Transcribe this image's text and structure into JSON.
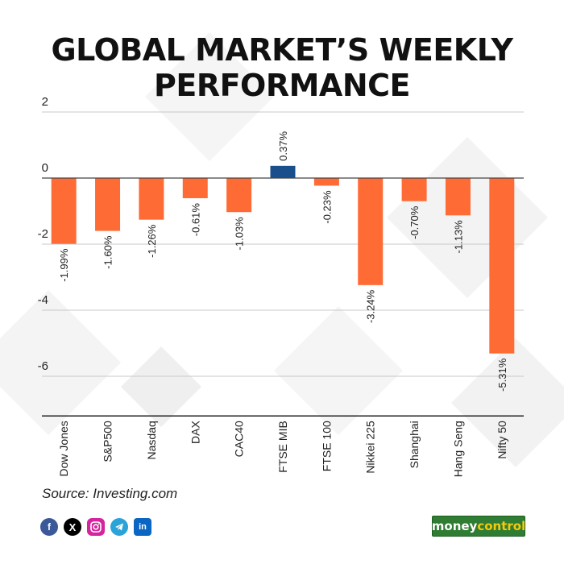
{
  "title_lines": [
    "GLOBAL MARKET’S WEEKLY",
    "PERFORMANCE"
  ],
  "source": "Source: Investing.com",
  "brand": {
    "prefix": "money",
    "suffix": "control"
  },
  "social_icons": [
    "facebook-icon",
    "x-icon",
    "instagram-icon",
    "telegram-icon",
    "linkedin-icon"
  ],
  "colors": {
    "negative": "#ff6b35",
    "positive": "#1a4f8b",
    "gridline": "#c8c8c8",
    "zero_line": "#444444",
    "brand_green": "#2e7d32"
  },
  "chart_data": {
    "type": "bar",
    "title": "GLOBAL MARKET’S WEEKLY PERFORMANCE",
    "categories": [
      "Dow Jones",
      "S&P500",
      "Nasdaq",
      "DAX",
      "CAC40",
      "FTSE MIB",
      "FTSE 100",
      "Nikkei 225",
      "Shanghai",
      "Hang Seng",
      "Nifty 50"
    ],
    "values": [
      -1.99,
      -1.6,
      -1.26,
      -0.61,
      -1.03,
      0.37,
      -0.23,
      -3.24,
      -0.7,
      -1.13,
      -5.31
    ],
    "data_labels": [
      "-1.99%",
      "-1.60%",
      "-1.26%",
      "-0.61%",
      "-1.03%",
      "0.37%",
      "-0.23%",
      "-3.24%",
      "-0.70%",
      "-1.13%",
      "-5.31%"
    ],
    "y_ticks": [
      2,
      0,
      -2,
      -4,
      -6
    ],
    "ylim": [
      -7.2,
      2
    ],
    "grid": true,
    "xlabel": "",
    "ylabel": ""
  }
}
